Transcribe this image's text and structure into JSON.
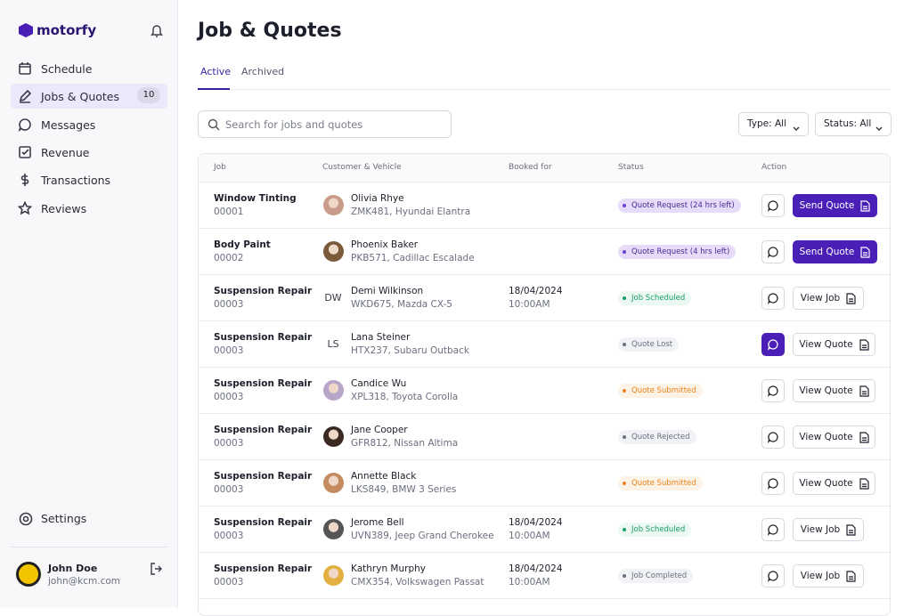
{
  "sidebar": {
    "brand": "motorfy",
    "nav": [
      {
        "label": "Schedule"
      },
      {
        "label": "Jobs & Quotes",
        "badge": 10,
        "active": true
      },
      {
        "label": "Messages"
      },
      {
        "label": "Revenue"
      },
      {
        "label": "Transactions"
      },
      {
        "label": "Reviews"
      }
    ],
    "settings": "Settings",
    "user": {
      "name": "John Doe",
      "email": "john@kcm.com"
    }
  },
  "header": {
    "title": "Job & Quotes"
  },
  "tabs": [
    {
      "label": "Active",
      "active": true
    },
    {
      "label": "Archived"
    }
  ],
  "search_placeholder": "Search for jobs and quotes",
  "filters": [
    "Type: All",
    "Status: All"
  ],
  "table": {
    "columns": [
      "Job",
      "Customer & Vehicle",
      "Booked for",
      "Status",
      "Action"
    ],
    "rows": [
      {
        "job": "Window Tinting",
        "id": "00001",
        "customer": "Olivia Rhye",
        "vehicle": "ZMK481, Hyundai Elantra",
        "status": "Quote Request (24 hrs left)",
        "status_color": "#6d3fd1",
        "status_bg": "#e6dcfa",
        "action": "Send Quote",
        "primary": true
      },
      {
        "job": "Body Paint",
        "id": "00002",
        "customer": "Phoenix Baker",
        "vehicle": "PKB571, Cadillac Escalade",
        "status": "Quote Request (4 hrs left)",
        "status_color": "#6d3fd1",
        "status_bg": "#e6dcfa",
        "action": "Send Quote",
        "primary": true
      },
      {
        "job": "Suspension Repair",
        "id": "00003",
        "initials": "DW",
        "customer": "Demi Wilkinson",
        "vehicle": "WKD675, Mazda CX-5",
        "date": "18/04/2024",
        "time": "10:00AM",
        "status": "Job Scheduled",
        "status_color": "#1a9e6a",
        "status_bg": "#ecf8f2",
        "action": "View Job"
      },
      {
        "job": "Suspension Repair",
        "id": "00003",
        "initials": "LS",
        "customer": "Lana Steiner",
        "vehicle": "HTX237, Subaru Outback",
        "status": "Quote Lost",
        "status_color": "#6b6f80",
        "status_bg": "#f1f2f5",
        "action": "View Quote",
        "message_active": true
      },
      {
        "job": "Suspension Repair",
        "id": "00003",
        "customer": "Candice Wu",
        "vehicle": "XPL318, Toyota Corolla",
        "status": "Quote Submitted",
        "status_color": "#e8841a",
        "status_bg": "#fdf2e6",
        "action": "View Quote"
      },
      {
        "job": "Suspension Repair",
        "id": "00003",
        "customer": "Jane Cooper",
        "vehicle": "GFR812, Nissan Altima",
        "status": "Quote Rejected",
        "status_color": "#6b6f80",
        "status_bg": "#f1f2f5",
        "action": "View Quote"
      },
      {
        "job": "Suspension Repair",
        "id": "00003",
        "customer": "Annette Black",
        "vehicle": "LKS849, BMW 3 Series",
        "status": "Quote Submitted",
        "status_color": "#e8841a",
        "status_bg": "#fdf2e6",
        "action": "View Quote"
      },
      {
        "job": "Suspension Repair",
        "id": "00003",
        "customer": "Jerome Bell",
        "vehicle": "UVN389, Jeep Grand Cherokee",
        "date": "18/04/2024",
        "time": "10:00AM",
        "status": "Job Scheduled",
        "status_color": "#1a9e6a",
        "status_bg": "#ecf8f2",
        "action": "View Job"
      },
      {
        "job": "Suspension Repair",
        "id": "00003",
        "customer": "Kathryn Murphy",
        "vehicle": "CMX354, Volkswagen Passat",
        "date": "18/04/2024",
        "time": "10:00AM",
        "status": "Job Completed",
        "status_color": "#6b6f80",
        "status_bg": "#f1f2f5",
        "action": "View Job"
      }
    ]
  }
}
